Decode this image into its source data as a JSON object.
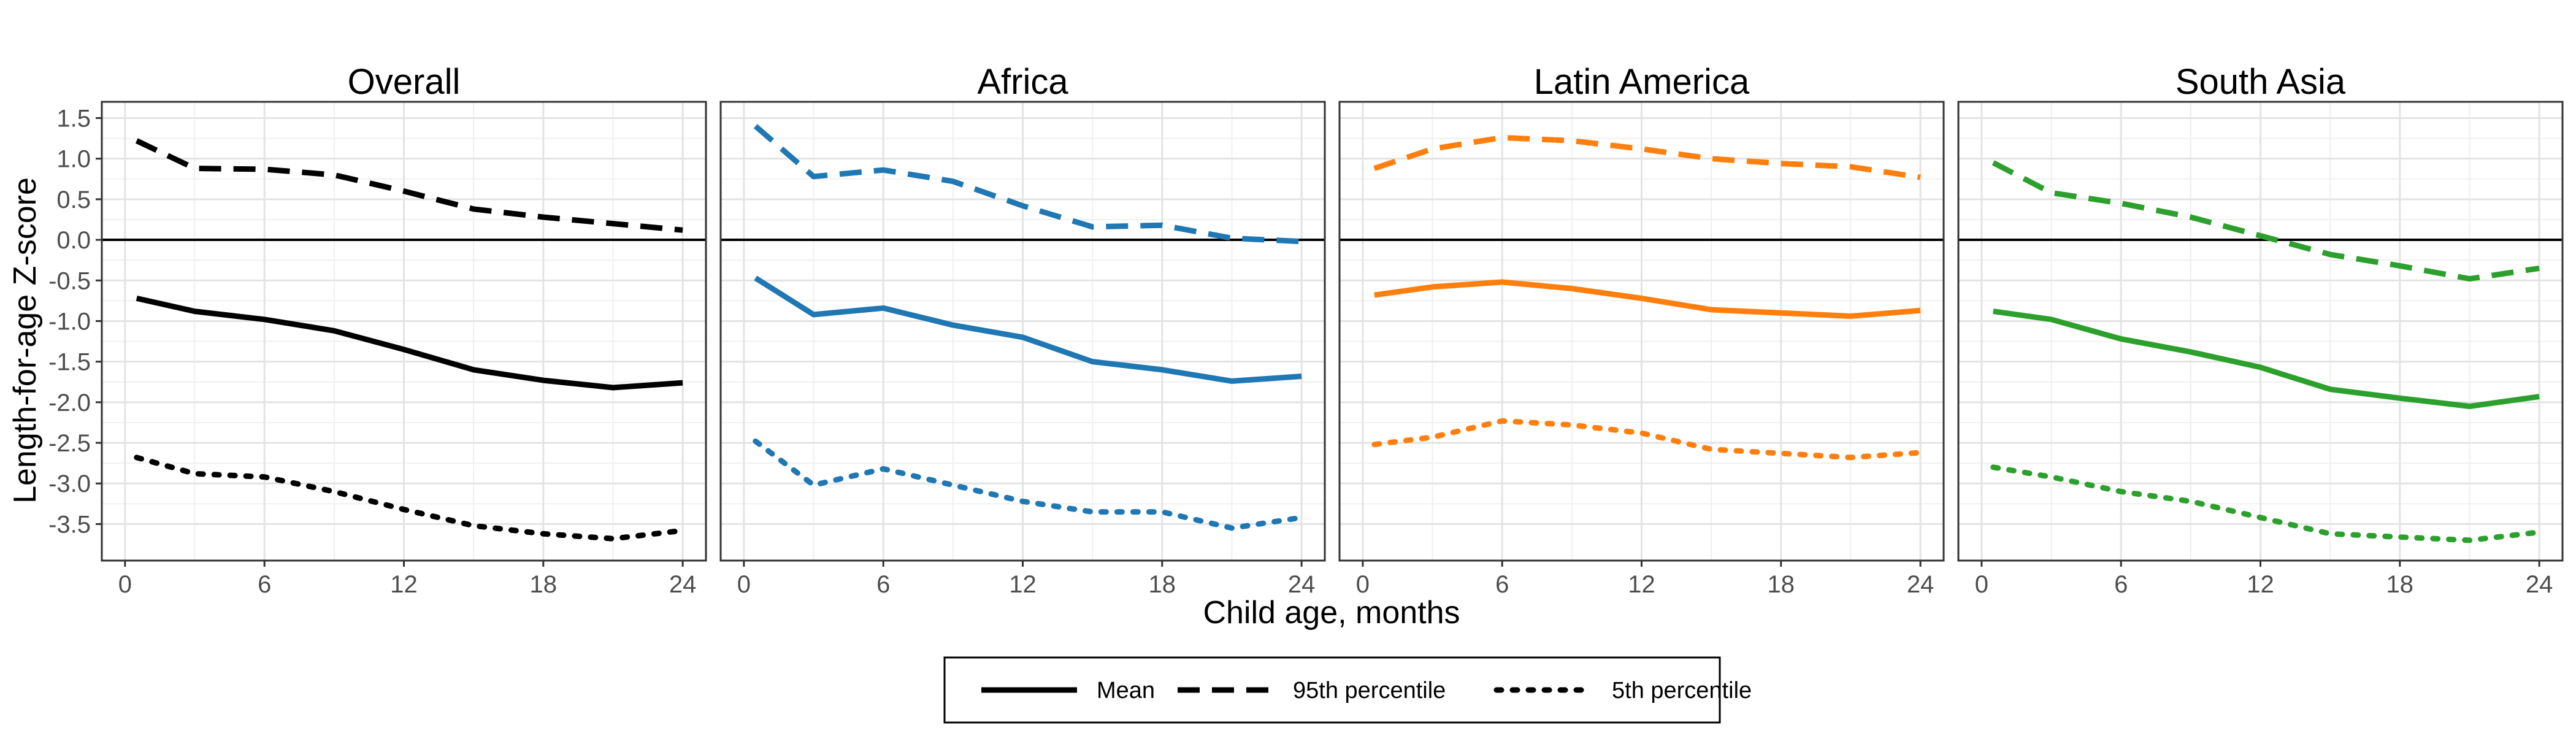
{
  "chart_data": {
    "type": "line",
    "facet_layout": "1 row, 4 columns, shared y axis",
    "xlabel": "Child age, months",
    "ylabel": "Length-for-age Z-score",
    "xlim": [
      -1,
      25
    ],
    "ylim": [
      -3.95,
      1.7
    ],
    "x_ticks": [
      0,
      6,
      12,
      18,
      24
    ],
    "y_ticks": [
      1.5,
      1.0,
      0.5,
      0.0,
      -0.5,
      -1.0,
      -1.5,
      -2.0,
      -2.5,
      -3.0,
      -3.5
    ],
    "reference_line": 0.0,
    "grid": true,
    "legend_position": "bottom",
    "legend": [
      {
        "label": "Mean",
        "line_style": "solid"
      },
      {
        "label": "95th percentile",
        "line_style": "dashed"
      },
      {
        "label": "5th percentile",
        "line_style": "dotted"
      }
    ],
    "x": [
      0.5,
      3,
      6,
      9,
      12,
      15,
      18,
      21,
      24
    ],
    "facets": [
      {
        "title": "Overall",
        "color": "#000000",
        "series": [
          {
            "name": "Mean",
            "values": [
              -0.72,
              -0.88,
              -0.98,
              -1.12,
              -1.35,
              -1.6,
              -1.73,
              -1.82,
              -1.76
            ]
          },
          {
            "name": "95th percentile",
            "values": [
              1.22,
              0.88,
              0.87,
              0.8,
              0.6,
              0.38,
              0.28,
              0.2,
              0.12
            ]
          },
          {
            "name": "5th percentile",
            "values": [
              -2.68,
              -2.88,
              -2.92,
              -3.1,
              -3.32,
              -3.52,
              -3.62,
              -3.68,
              -3.58
            ]
          }
        ]
      },
      {
        "title": "Africa",
        "color": "#1f77b4",
        "series": [
          {
            "name": "Mean",
            "values": [
              -0.47,
              -0.92,
              -0.84,
              -1.05,
              -1.2,
              -1.5,
              -1.6,
              -1.74,
              -1.68
            ]
          },
          {
            "name": "95th percentile",
            "values": [
              1.4,
              0.78,
              0.86,
              0.72,
              0.42,
              0.16,
              0.18,
              0.02,
              -0.02
            ]
          },
          {
            "name": "5th percentile",
            "values": [
              -2.48,
              -3.02,
              -2.82,
              -3.02,
              -3.22,
              -3.35,
              -3.35,
              -3.55,
              -3.42
            ]
          }
        ]
      },
      {
        "title": "Latin America",
        "color": "#ff7f0e",
        "series": [
          {
            "name": "Mean",
            "values": [
              -0.68,
              -0.58,
              -0.52,
              -0.6,
              -0.72,
              -0.86,
              -0.9,
              -0.94,
              -0.87
            ]
          },
          {
            "name": "95th percentile",
            "values": [
              0.88,
              1.12,
              1.26,
              1.22,
              1.12,
              1.0,
              0.94,
              0.9,
              0.77
            ]
          },
          {
            "name": "5th percentile",
            "values": [
              -2.52,
              -2.43,
              -2.23,
              -2.28,
              -2.38,
              -2.58,
              -2.63,
              -2.68,
              -2.62
            ]
          }
        ]
      },
      {
        "title": "South Asia",
        "color": "#2ca02c",
        "series": [
          {
            "name": "Mean",
            "values": [
              -0.88,
              -0.98,
              -1.22,
              -1.38,
              -1.57,
              -1.84,
              -1.95,
              -2.05,
              -1.93
            ]
          },
          {
            "name": "95th percentile",
            "values": [
              0.95,
              0.58,
              0.45,
              0.28,
              0.05,
              -0.18,
              -0.32,
              -0.48,
              -0.35
            ]
          },
          {
            "name": "5th percentile",
            "values": [
              -2.8,
              -2.92,
              -3.1,
              -3.22,
              -3.42,
              -3.62,
              -3.66,
              -3.7,
              -3.6
            ]
          }
        ]
      }
    ]
  }
}
